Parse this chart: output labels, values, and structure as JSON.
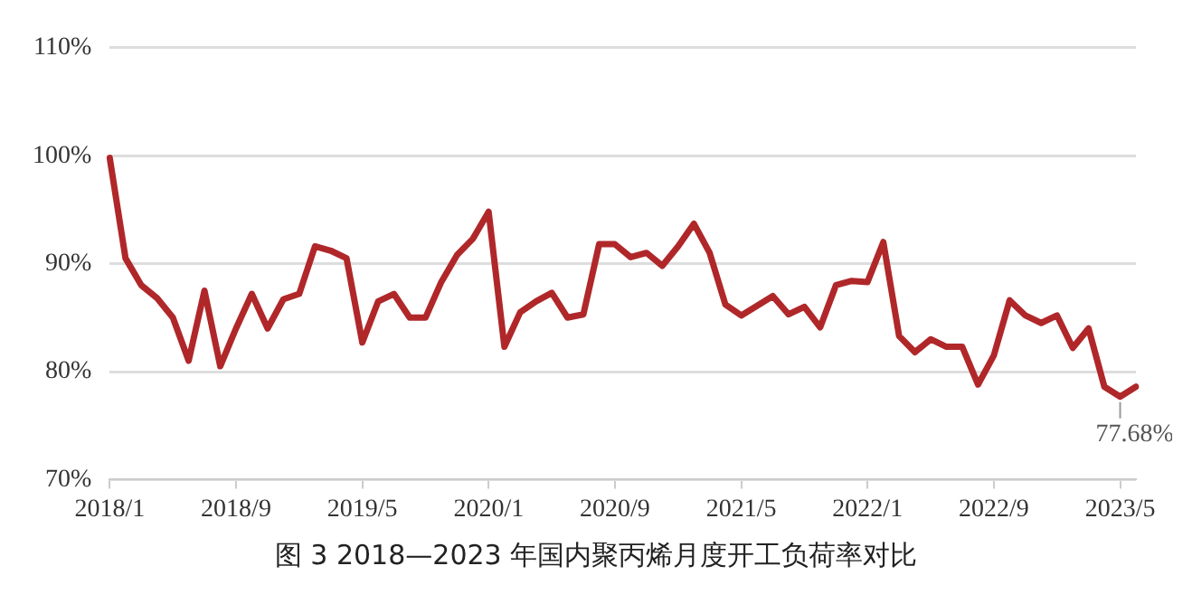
{
  "chart_data": {
    "type": "line",
    "title": "图 3  2018—2023 年国内聚丙烯月度开工负荷率对比",
    "categories": [
      "2018/1",
      null,
      null,
      null,
      null,
      null,
      null,
      null,
      "2018/9",
      null,
      null,
      null,
      null,
      null,
      null,
      null,
      "2019/5",
      null,
      null,
      null,
      null,
      null,
      null,
      null,
      "2020/1",
      null,
      null,
      null,
      null,
      null,
      null,
      null,
      "2020/9",
      null,
      null,
      null,
      null,
      null,
      null,
      null,
      "2021/5",
      null,
      null,
      null,
      null,
      null,
      null,
      null,
      "2022/1",
      null,
      null,
      null,
      null,
      null,
      null,
      null,
      "2022/9",
      null,
      null,
      null,
      null,
      null,
      null,
      null,
      "2023/5",
      null
    ],
    "series": [
      {
        "color": "#b0272a",
        "values": [
          99.8,
          90.5,
          88,
          86.8,
          85,
          81,
          87.5,
          80.5,
          84,
          87.2,
          84,
          86.7,
          87.2,
          91.6,
          91.2,
          90.5,
          82.7,
          86.5,
          87.2,
          85,
          85,
          88.3,
          90.8,
          92.3,
          94.8,
          82.3,
          85.5,
          86.5,
          87.3,
          85,
          85.3,
          91.8,
          91.8,
          90.6,
          91,
          89.8,
          91.6,
          93.7,
          91,
          86.2,
          85.2,
          86.1,
          87,
          85.3,
          86,
          84.1,
          88,
          88.4,
          88.3,
          92,
          83.3,
          81.8,
          83,
          82.3,
          82.3,
          78.8,
          81.5,
          86.6,
          85.2,
          84.5,
          85.2,
          82.2,
          84,
          78.6,
          77.68,
          78.6
        ]
      }
    ],
    "ylim": [
      70,
      110
    ],
    "yticks": [
      {
        "value": 70,
        "label": "70%"
      },
      {
        "value": 80,
        "label": "80%"
      },
      {
        "value": 90,
        "label": "90%"
      },
      {
        "value": 100,
        "label": "100%"
      },
      {
        "value": 110,
        "label": "110%"
      }
    ],
    "grid": "y",
    "marker": "none",
    "line_style": "solid",
    "annotations": [
      {
        "text": "77.68%",
        "x": "2023/5",
        "y": 77.68
      }
    ]
  }
}
